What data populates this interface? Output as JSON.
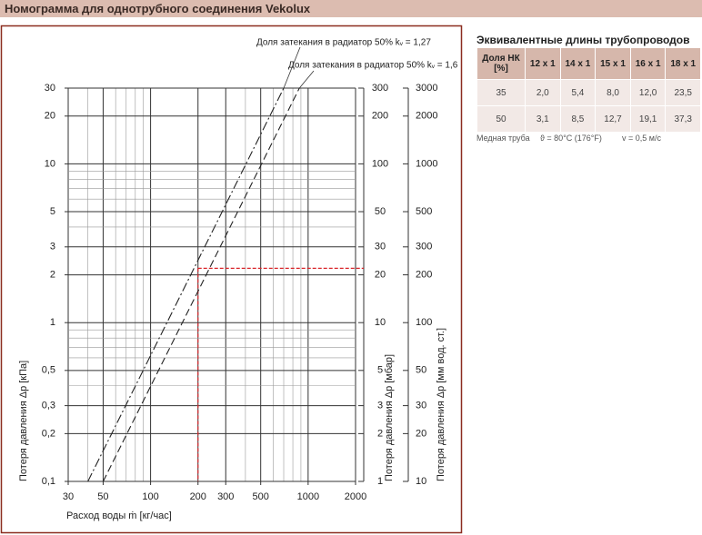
{
  "page_title": "Номограмма для однотрубного соединения Vekolux",
  "chart_data": {
    "type": "line",
    "x_label": "Расход воды ṁ [кг/час]",
    "y_label": "Потеря давления Δp [кПа]",
    "y2_label": "Потеря давления Δp [мбар]",
    "y3_label": "Потеря давления Δp [мм вод. ст.]",
    "log_x": true,
    "log_y": true,
    "grid": true,
    "xlim": [
      30,
      2000
    ],
    "xticks": [
      30,
      50,
      100,
      200,
      300,
      500,
      1000,
      2000
    ],
    "xgrid": [
      30,
      40,
      50,
      60,
      70,
      80,
      90,
      100,
      200,
      300,
      400,
      500,
      600,
      700,
      800,
      900,
      1000,
      2000
    ],
    "ylim": [
      0.1,
      30
    ],
    "yticks": [
      {
        "value": 0.1,
        "label": "0,1"
      },
      {
        "value": 0.2,
        "label": "0,2"
      },
      {
        "value": 0.3,
        "label": "0,3"
      },
      {
        "value": 0.5,
        "label": "0,5"
      },
      1,
      2,
      3,
      5,
      10,
      20,
      30
    ],
    "ygrid": [
      0.1,
      0.2,
      0.3,
      0.4,
      0.5,
      0.6,
      0.7,
      0.8,
      0.9,
      1,
      2,
      3,
      4,
      5,
      6,
      7,
      8,
      9,
      10,
      20,
      30
    ],
    "y2lim": [
      1,
      300
    ],
    "y2ticks": [
      1,
      2,
      3,
      5,
      10,
      20,
      30,
      50,
      100,
      200,
      300
    ],
    "y3lim": [
      10,
      3000
    ],
    "y3ticks": [
      10,
      20,
      30,
      50,
      100,
      200,
      300,
      500,
      1000,
      2000,
      3000
    ],
    "series": [
      {
        "name": "Доля затекания в радиатор 50% kᵥ = 1,27",
        "color": "#222222",
        "x": [
          40,
          700
        ],
        "values": [
          0.1,
          30
        ]
      },
      {
        "name": "Доля затекания в радиатор 50% kᵥ = 1,6",
        "color": "#222222",
        "x": [
          50,
          880
        ],
        "values": [
          0.1,
          30
        ]
      }
    ],
    "reference": {
      "x": 200,
      "y": 2.2,
      "color": "#d9262b"
    }
  },
  "table": {
    "title": "Эквивалентные длины трубопроводов [м]",
    "header": [
      "Доля НК [%]",
      "12 x 1",
      "14 x 1",
      "15 x 1",
      "16 x 1",
      "18 x 1"
    ],
    "rows": [
      [
        "35",
        "2,0",
        "5,4",
        "8,0",
        "12,0",
        "23,5"
      ],
      [
        "50",
        "3,1",
        "8,5",
        "12,7",
        "19,1",
        "37,3"
      ]
    ],
    "notes": [
      "Медная труба",
      "ϑ = 80°C (176°F)",
      "v = 0,5 м/с"
    ]
  }
}
